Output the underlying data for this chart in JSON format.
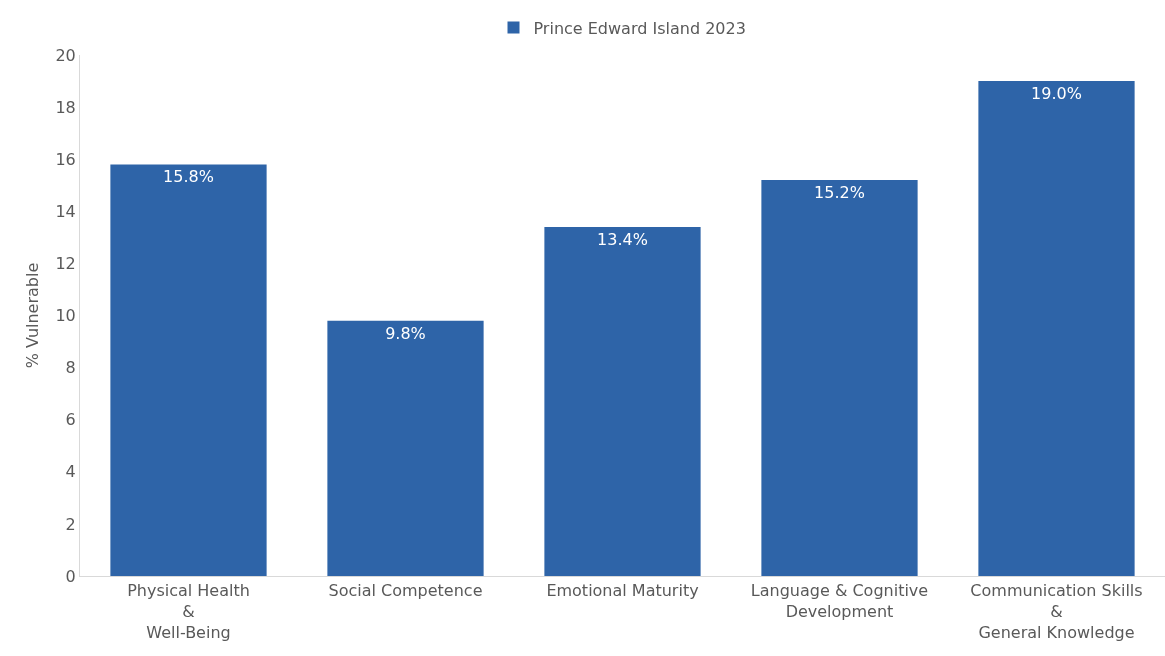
{
  "chart_data": {
    "type": "bar",
    "ylabel": "% Vulnerable",
    "categories": [
      "Physical Health\n&\nWell-Being",
      "Social Competence",
      "Emotional Maturity",
      "Language & Cognitive\nDevelopment",
      "Communication Skills\n&\nGeneral Knowledge"
    ],
    "series": [
      {
        "name": "Prince Edward Island 2023",
        "color": "#2e64a8",
        "values": [
          15.8,
          9.8,
          13.4,
          15.2,
          19.0
        ],
        "value_labels": [
          "15.8%",
          "9.8%",
          "13.4%",
          "15.2%",
          "19.0%"
        ]
      }
    ],
    "ylim": [
      0,
      20
    ],
    "yticks": [
      0,
      2,
      4,
      6,
      8,
      10,
      12,
      14,
      16,
      18,
      20
    ],
    "grid": false,
    "legend": "top"
  }
}
